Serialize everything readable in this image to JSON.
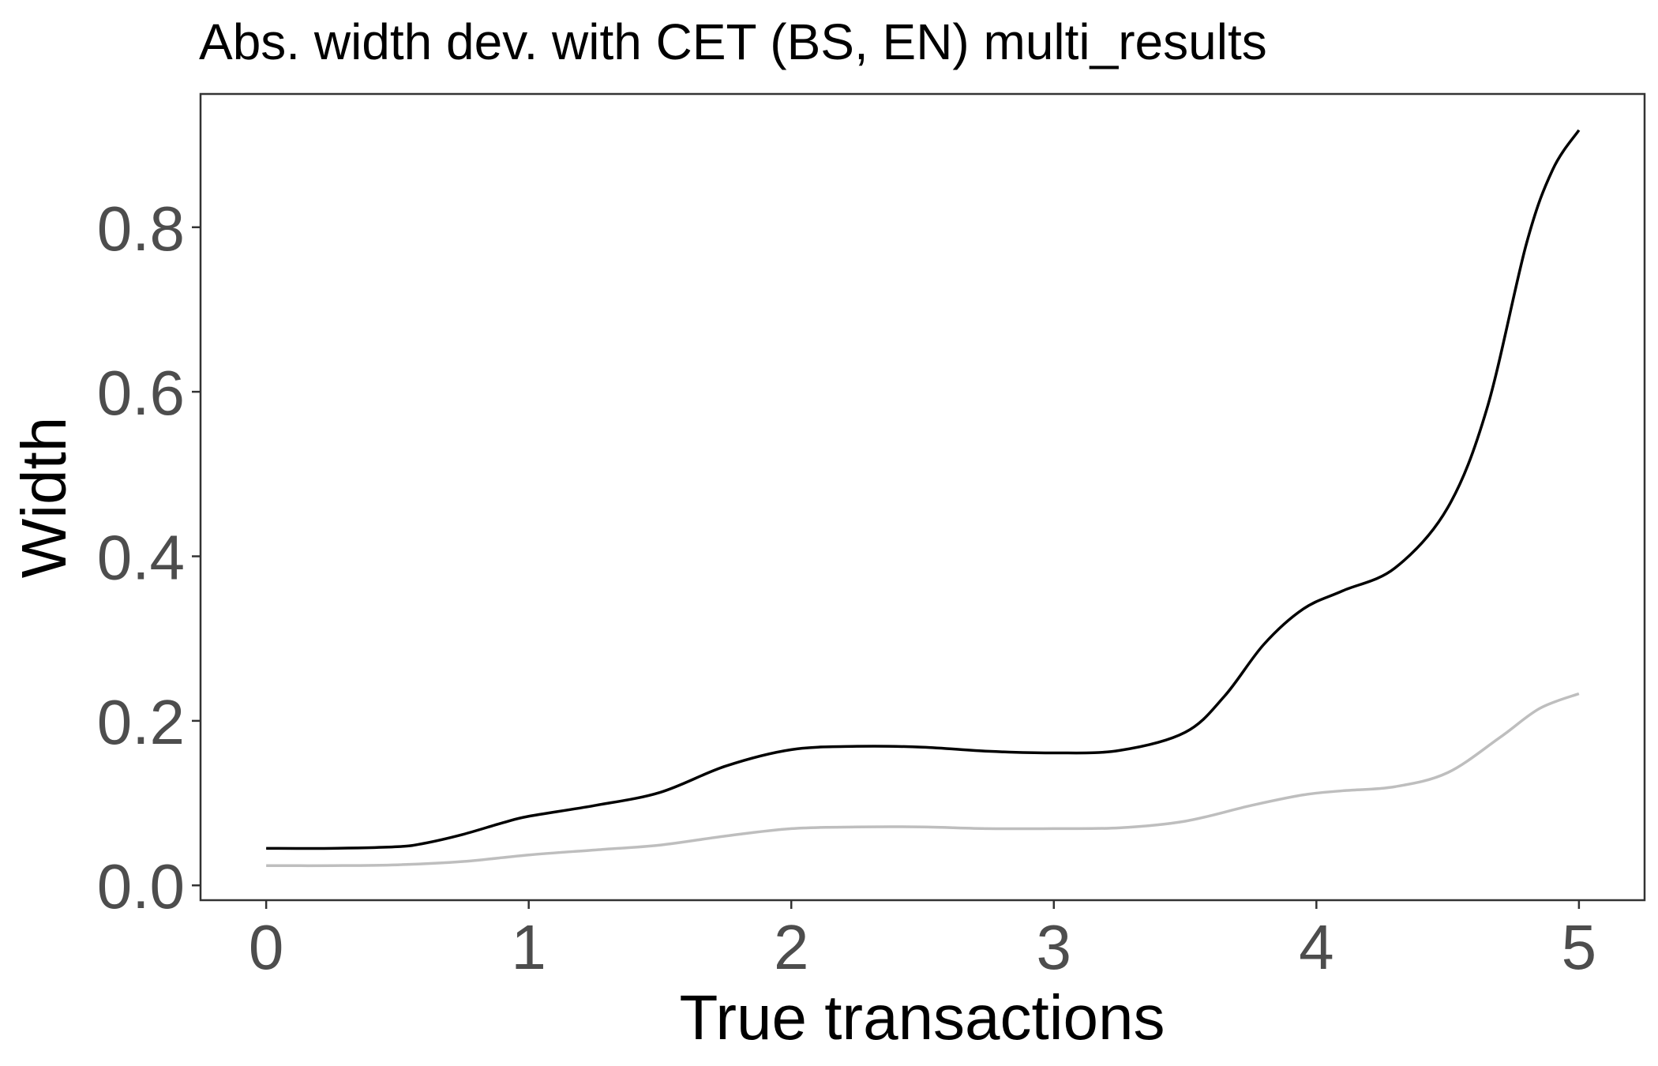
{
  "chart_data": {
    "type": "line",
    "title": "Abs. width dev. with CET (BS, EN) multi_results",
    "xlabel": "True transactions",
    "ylabel": "Width",
    "xlim": [
      -0.25,
      5.25
    ],
    "ylim": [
      -0.018,
      0.962
    ],
    "x_ticks": [
      0,
      1,
      2,
      3,
      4,
      5
    ],
    "x_tick_labels": [
      "0",
      "1",
      "2",
      "3",
      "4",
      "5"
    ],
    "y_ticks": [
      0.0,
      0.2,
      0.4,
      0.6,
      0.8
    ],
    "y_tick_labels": [
      "0.0",
      "0.2",
      "0.4",
      "0.6",
      "0.8"
    ],
    "grid": false,
    "legend": "none",
    "series": [
      {
        "color": "#000000",
        "x": [
          0,
          0.25,
          0.5,
          0.6,
          0.75,
          0.9,
          1.0,
          1.25,
          1.5,
          1.75,
          2.0,
          2.25,
          2.5,
          2.75,
          3.0,
          3.25,
          3.5,
          3.65,
          3.8,
          3.95,
          4.1,
          4.3,
          4.5,
          4.65,
          4.8,
          4.9,
          5.0
        ],
        "y": [
          0.045,
          0.045,
          0.047,
          0.051,
          0.062,
          0.076,
          0.084,
          0.097,
          0.113,
          0.145,
          0.165,
          0.169,
          0.168,
          0.163,
          0.161,
          0.164,
          0.186,
          0.23,
          0.293,
          0.336,
          0.358,
          0.386,
          0.459,
          0.58,
          0.78,
          0.87,
          0.918
        ]
      },
      {
        "color": "#bebebe",
        "x": [
          0,
          0.25,
          0.5,
          0.75,
          1.0,
          1.25,
          1.5,
          1.75,
          2.0,
          2.25,
          2.5,
          2.75,
          3.0,
          3.25,
          3.5,
          3.75,
          3.95,
          4.1,
          4.3,
          4.5,
          4.7,
          4.85,
          5.0
        ],
        "y": [
          0.024,
          0.024,
          0.025,
          0.029,
          0.037,
          0.043,
          0.049,
          0.06,
          0.069,
          0.071,
          0.071,
          0.069,
          0.069,
          0.07,
          0.078,
          0.097,
          0.11,
          0.115,
          0.12,
          0.137,
          0.18,
          0.215,
          0.233
        ]
      }
    ]
  }
}
